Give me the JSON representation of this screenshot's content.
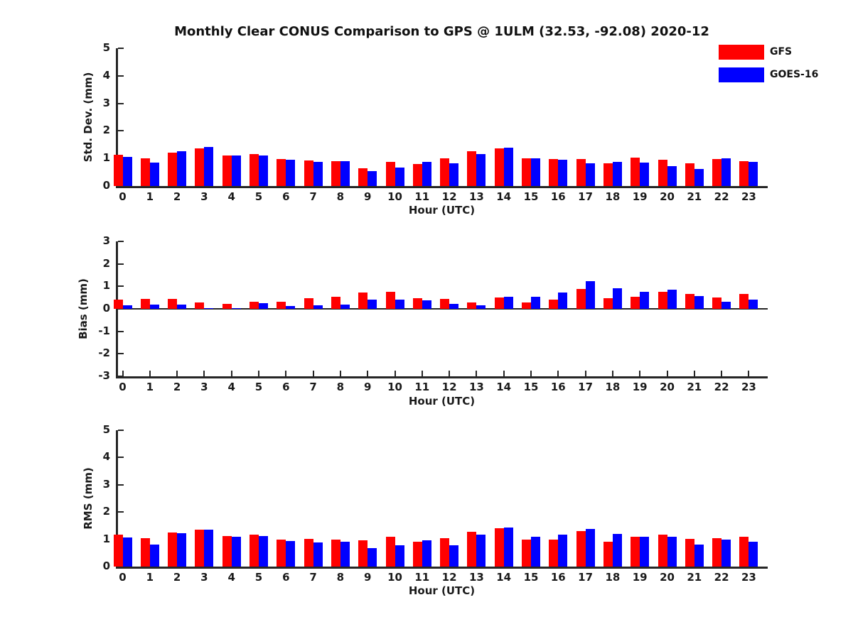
{
  "title": "Monthly Clear CONUS Comparison to GPS @ 1ULM (32.53, -92.08) 2020-12",
  "legend": {
    "position": "top-right",
    "items": [
      {
        "label": "GFS",
        "color": "#ff0000"
      },
      {
        "label": "GOES-16",
        "color": "#0000ff"
      }
    ]
  },
  "colors": {
    "gfs": "#ff0000",
    "goes16": "#0000ff",
    "axis": "#262626",
    "text": "#1a1a1a",
    "background": "#ffffff"
  },
  "chart_data": [
    {
      "type": "bar",
      "name": "std-dev",
      "ylabel": "Std. Dev. (mm)",
      "xlabel": "Hour (UTC)",
      "ylim": [
        0,
        5
      ],
      "yticks": [
        0,
        1,
        2,
        3,
        4,
        5
      ],
      "grid": false,
      "legend_position": "figure-top-right",
      "categories": [
        "0",
        "1",
        "2",
        "3",
        "4",
        "5",
        "6",
        "7",
        "8",
        "9",
        "10",
        "11",
        "12",
        "13",
        "14",
        "15",
        "16",
        "17",
        "18",
        "19",
        "20",
        "21",
        "22",
        "23"
      ],
      "series": [
        {
          "name": "GFS",
          "color": "#ff0000",
          "values": [
            1.13,
            1.0,
            1.21,
            1.36,
            1.12,
            1.15,
            0.97,
            0.94,
            0.89,
            0.65,
            0.87,
            0.8,
            1.0,
            1.26,
            1.37,
            1.01,
            0.97,
            0.99,
            0.82,
            1.02,
            0.95,
            0.82,
            0.97,
            0.91
          ]
        },
        {
          "name": "GOES-16",
          "color": "#0000ff",
          "values": [
            1.05,
            0.84,
            1.26,
            1.41,
            1.1,
            1.12,
            0.96,
            0.87,
            0.9,
            0.55,
            0.66,
            0.87,
            0.82,
            1.17,
            1.38,
            1.01,
            0.96,
            0.82,
            0.88,
            0.86,
            0.71,
            0.63,
            1.0,
            0.87
          ]
        }
      ]
    },
    {
      "type": "bar",
      "name": "bias",
      "ylabel": "Bias (mm)",
      "xlabel": "Hour (UTC)",
      "ylim": [
        -3,
        3
      ],
      "yticks": [
        -3,
        -2,
        -1,
        0,
        1,
        2,
        3
      ],
      "grid": false,
      "legend_position": "figure-top-right",
      "categories": [
        "0",
        "1",
        "2",
        "3",
        "4",
        "5",
        "6",
        "7",
        "8",
        "9",
        "10",
        "11",
        "12",
        "13",
        "14",
        "15",
        "16",
        "17",
        "18",
        "19",
        "20",
        "21",
        "22",
        "23"
      ],
      "series": [
        {
          "name": "GFS",
          "color": "#ff0000",
          "values": [
            0.42,
            0.43,
            0.43,
            0.28,
            0.23,
            0.33,
            0.32,
            0.48,
            0.55,
            0.73,
            0.75,
            0.46,
            0.45,
            0.28,
            0.5,
            0.27,
            0.41,
            0.89,
            0.48,
            0.53,
            0.77,
            0.65,
            0.52,
            0.67
          ]
        },
        {
          "name": "GOES-16",
          "color": "#0000ff",
          "values": [
            0.15,
            0.19,
            0.19,
            0.04,
            0.02,
            0.24,
            0.12,
            0.17,
            0.18,
            0.4,
            0.42,
            0.38,
            0.23,
            0.15,
            0.53,
            0.55,
            0.72,
            1.22,
            0.93,
            0.76,
            0.84,
            0.58,
            0.32,
            0.42
          ]
        }
      ]
    },
    {
      "type": "bar",
      "name": "rms",
      "ylabel": "RMS (mm)",
      "xlabel": "Hour (UTC)",
      "ylim": [
        0,
        5
      ],
      "yticks": [
        0,
        1,
        2,
        3,
        4,
        5
      ],
      "grid": false,
      "legend_position": "figure-top-right",
      "categories": [
        "0",
        "1",
        "2",
        "3",
        "4",
        "5",
        "6",
        "7",
        "8",
        "9",
        "10",
        "11",
        "12",
        "13",
        "14",
        "15",
        "16",
        "17",
        "18",
        "19",
        "20",
        "21",
        "22",
        "23"
      ],
      "series": [
        {
          "name": "GFS",
          "color": "#ff0000",
          "values": [
            1.18,
            1.05,
            1.25,
            1.36,
            1.13,
            1.18,
            1.0,
            1.01,
            1.0,
            0.97,
            1.09,
            0.92,
            1.04,
            1.27,
            1.41,
            0.99,
            0.98,
            1.29,
            0.91,
            1.09,
            1.17,
            1.01,
            1.03,
            1.09
          ]
        },
        {
          "name": "GOES-16",
          "color": "#0000ff",
          "values": [
            1.07,
            0.82,
            1.23,
            1.36,
            1.09,
            1.13,
            0.95,
            0.88,
            0.92,
            0.69,
            0.78,
            0.96,
            0.79,
            1.16,
            1.44,
            1.09,
            1.16,
            1.38,
            1.19,
            1.09,
            1.09,
            0.81,
            0.98,
            0.91
          ]
        }
      ]
    }
  ]
}
